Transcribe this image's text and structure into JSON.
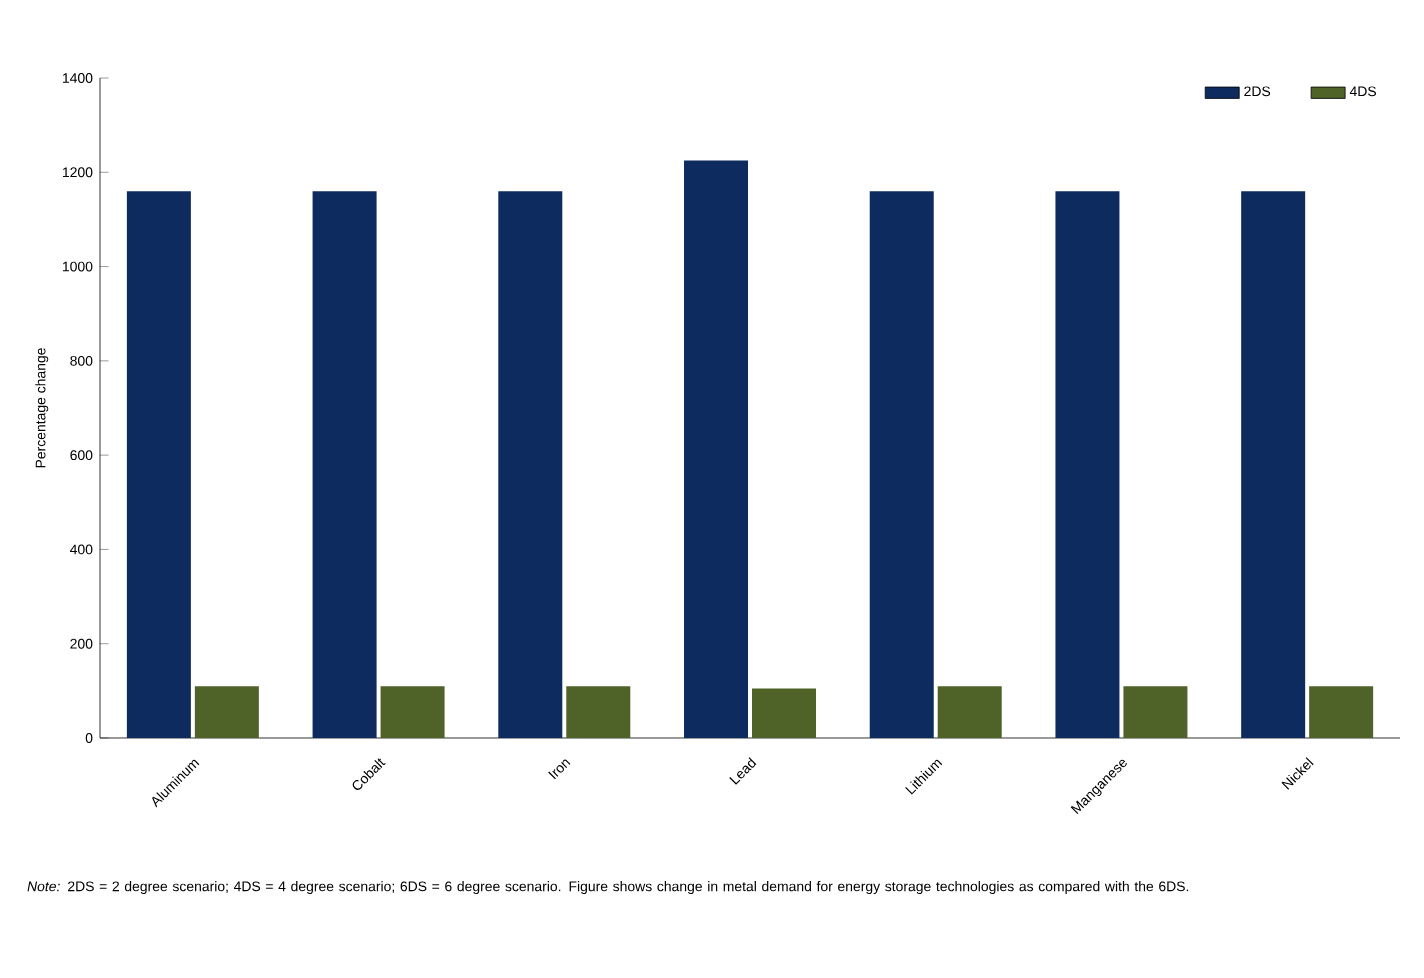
{
  "chart_data": {
    "type": "bar",
    "ylabel": "Percentage change",
    "categories": [
      "Aluminum",
      "Cobalt",
      "Iron",
      "Lead",
      "Lithium",
      "Manganese",
      "Nickel"
    ],
    "series": [
      {
        "name": "2DS",
        "color": "#0d2b5e",
        "values": [
          1160,
          1160,
          1160,
          1225,
          1160,
          1160,
          1160
        ]
      },
      {
        "name": "4DS",
        "color": "#4f6228",
        "values": [
          110,
          110,
          110,
          105,
          110,
          110,
          110
        ]
      }
    ],
    "ylim": [
      0,
      1400
    ],
    "yticks": [
      0,
      200,
      400,
      600,
      800,
      1000,
      1200,
      1400
    ],
    "grid": false,
    "legend": "top right",
    "annotations": [
      "*Note:*  2DS = 2 degree scenario; 4DS = 4 degree scenario; 6DS = 6 degree scenario. Figure shows change in metal demand for energy storage technologies as compared with the 6DS."
    ]
  }
}
